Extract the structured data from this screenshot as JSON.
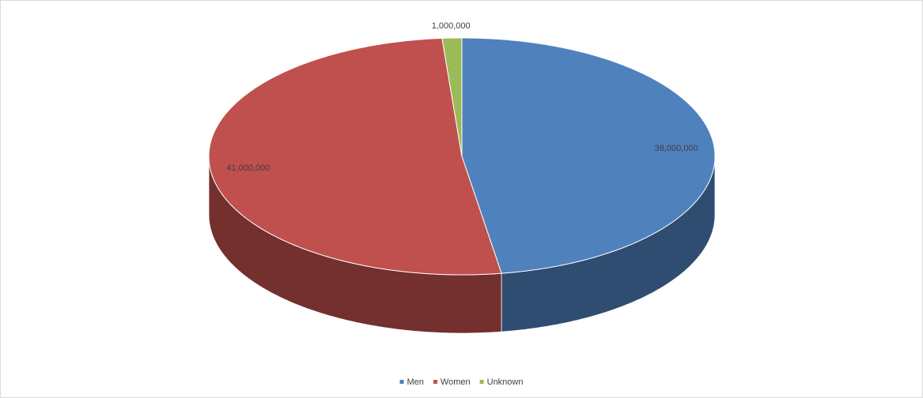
{
  "chart_data": {
    "type": "pie3d",
    "categories": [
      "Men",
      "Women",
      "Unknown"
    ],
    "series": [
      {
        "values": [
          38000000,
          41000000,
          1000000
        ],
        "value_labels": [
          "38,000,000",
          "41,000,000",
          "1,000,000"
        ],
        "colors": [
          "#4f81bd",
          "#c0504d",
          "#9bbb59"
        ]
      }
    ],
    "legend": "bottom"
  }
}
